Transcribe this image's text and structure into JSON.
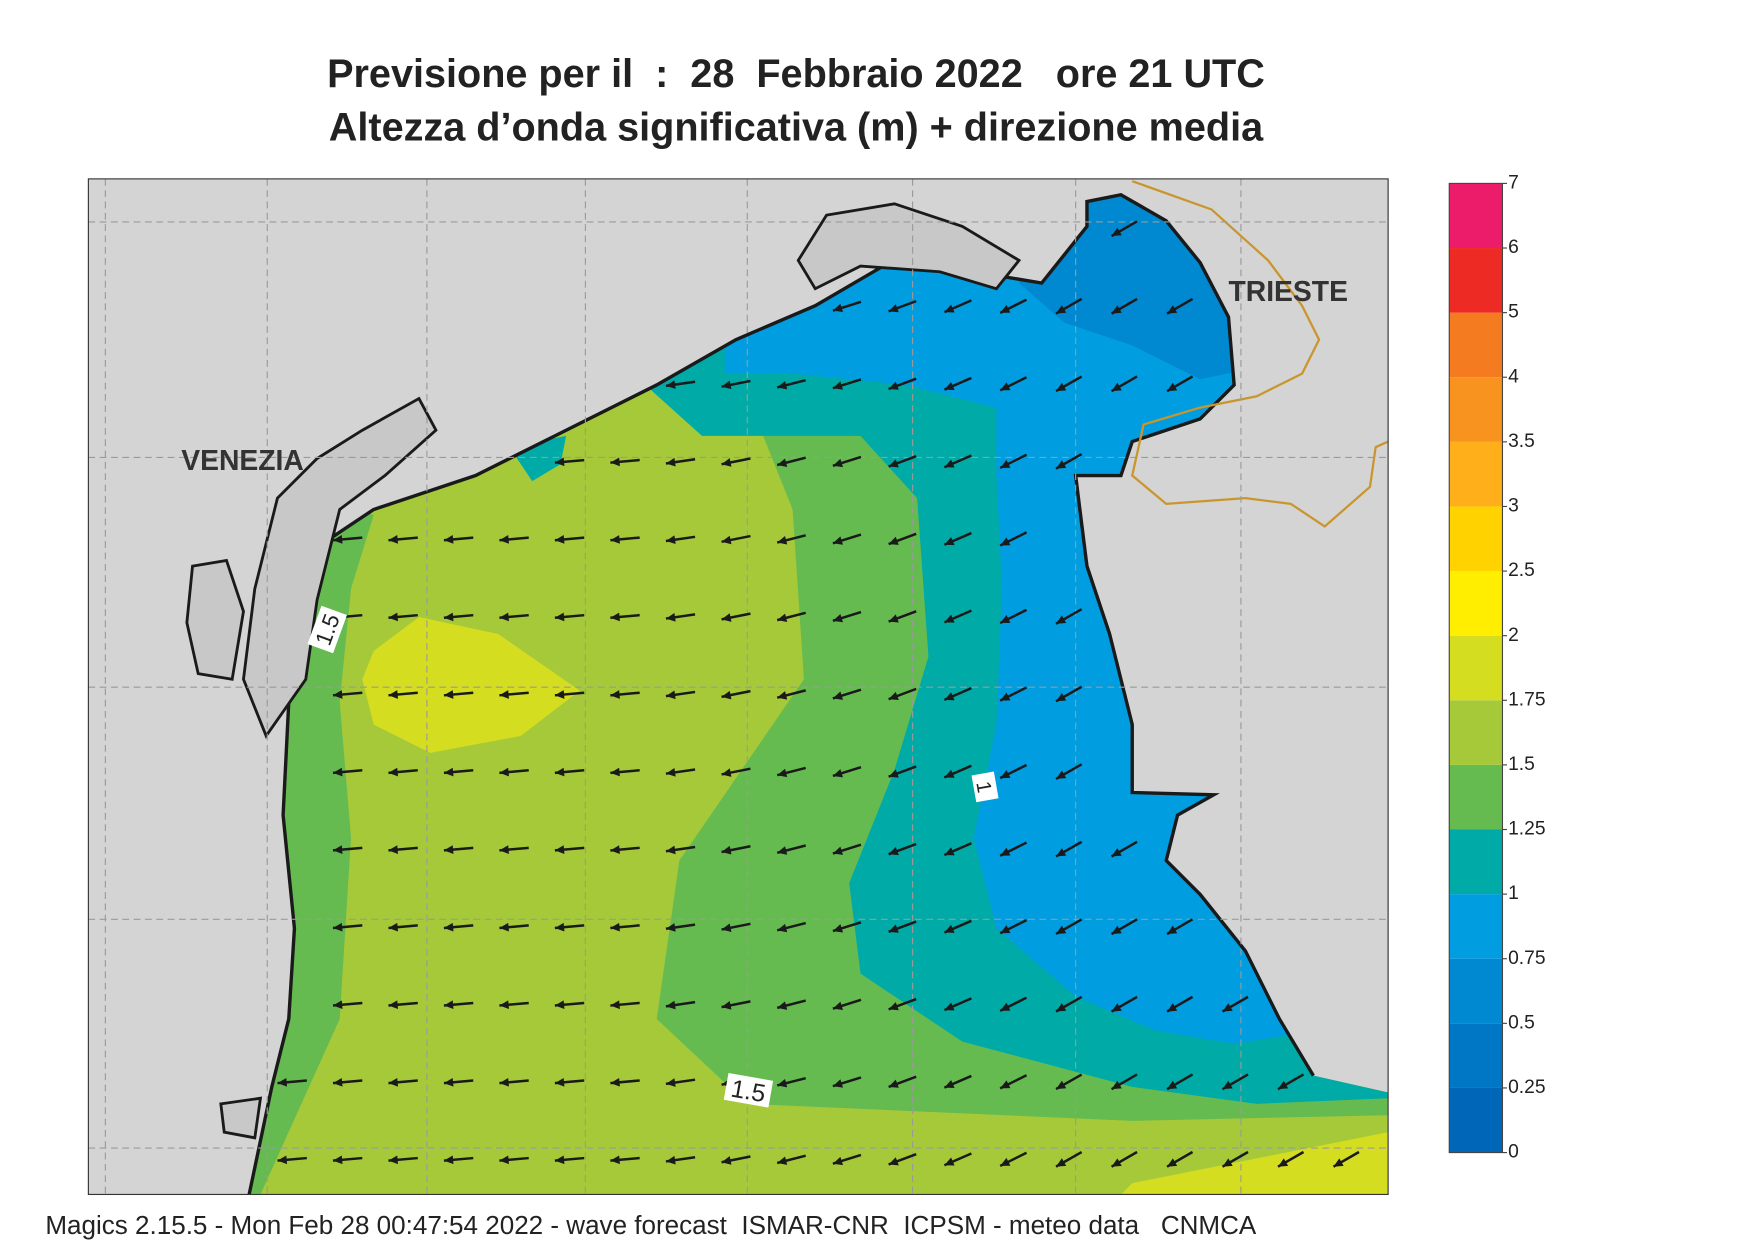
{
  "header": {
    "title_line1": "Previsione per il  :  28  Febbraio 2022   ore 21 UTC",
    "title_line2": "Altezza d’onda significativa (m) + direzione media"
  },
  "map": {
    "place_labels": [
      "VENEZIA",
      "TRIESTE"
    ],
    "contour_labels": [
      "1.5",
      "1",
      "1.5"
    ]
  },
  "colorbar": {
    "levels": [
      0,
      0.25,
      0.5,
      0.75,
      1,
      1.25,
      1.5,
      1.75,
      2,
      2.5,
      3,
      3.5,
      4,
      5,
      6,
      7
    ],
    "colors": [
      "#0066b8",
      "#0077c4",
      "#0088d0",
      "#009de0",
      "#00aaa6",
      "#66bb50",
      "#a6c93a",
      "#d4dd20",
      "#ffee00",
      "#ffd200",
      "#ffaf1a",
      "#f8931f",
      "#f47b20",
      "#ee2a24",
      "#ec1c6a"
    ]
  },
  "footer": "Magics 2.15.5 - Mon Feb 28 00:47:54 2022 - wave forecast  ISMAR-CNR  ICPSM - meteo data   CNMCA"
}
